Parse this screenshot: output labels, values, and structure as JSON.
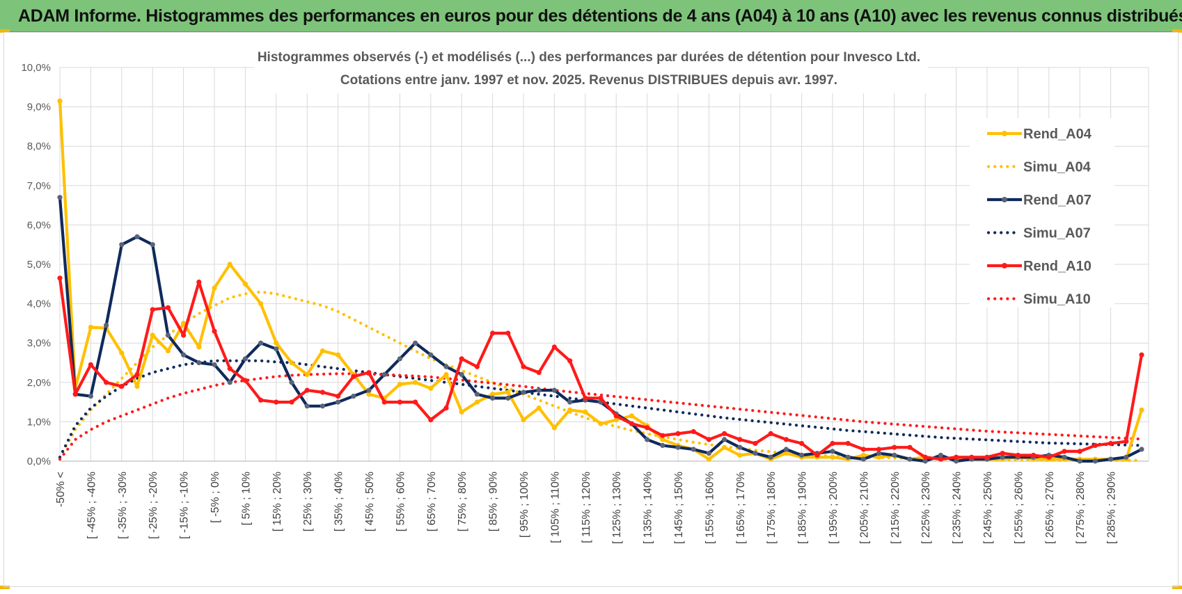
{
  "banner": {
    "title": "ADAM Informe. Histogrammes des performances en euros pour des détentions de 4 ans (A04) à 10 ans (A10) avec les revenus connus distribués"
  },
  "colors": {
    "banner_bg": "#7dc47a",
    "A04": "#ffc000",
    "A07": "#0f2a5c",
    "A10": "#ff1a1a",
    "marker_A07": "#5a6478",
    "grid": "#d9d9d9"
  },
  "chart_data": {
    "type": "line",
    "title": "Histogrammes observés (-) et modélisés (...) des performances par durées de détention pour Invesco Ltd.",
    "subtitle": "Cotations entre janv. 1997 et nov. 2025. Revenus DISTRIBUES depuis avr. 1997.",
    "ylim": [
      0,
      10
    ],
    "y_ticks": [
      "0,0%",
      "1,0%",
      "2,0%",
      "3,0%",
      "4,0%",
      "5,0%",
      "6,0%",
      "7,0%",
      "8,0%",
      "9,0%",
      "10,0%"
    ],
    "grid": true,
    "legend_position": "right",
    "x_tick_labels": [
      "-50% <",
      "[ -45% ; -40%",
      "[ -35% ; -30%",
      "[ -25% ; -20%",
      "[ -15% ; -10%",
      "[ -5% ; 0%",
      "[ 5% ; 10%",
      "[ 15% ; 20%",
      "[ 25% ; 30%",
      "[ 35% ; 40%",
      "[ 45% ; 50%",
      "[ 55% ; 60%",
      "[ 65% ; 70%",
      "[ 75% ; 80%",
      "[ 85% ; 90%",
      "[ 95% ; 100%",
      "[ 105% ; 110%",
      "[ 115% ; 120%",
      "[ 125% ; 130%",
      "[ 135% ; 140%",
      "[ 145% ; 150%",
      "[ 155% ; 160%",
      "[ 165% ; 170%",
      "[ 175% ; 180%",
      "[ 185% ; 190%",
      "[ 195% ; 200%",
      "[ 205% ; 210%",
      "[ 215% ; 220%",
      "[ 225% ; 230%",
      "[ 235% ; 240%",
      "[ 245% ; 250%",
      "[ 255% ; 260%",
      "[ 265% ; 270%",
      "[ 275% ; 280%",
      "[ 285% ; 290%"
    ],
    "series": [
      {
        "name": "Rend_A04",
        "style": "solid",
        "color": "#ffc000",
        "values": [
          9.15,
          1.85,
          3.4,
          3.38,
          2.75,
          1.9,
          3.2,
          2.8,
          3.5,
          2.9,
          4.4,
          5.0,
          4.5,
          4.0,
          3.0,
          2.5,
          2.2,
          2.8,
          2.7,
          2.2,
          1.7,
          1.6,
          1.95,
          2.0,
          1.85,
          2.2,
          1.25,
          1.5,
          1.7,
          1.75,
          1.05,
          1.35,
          0.85,
          1.3,
          1.25,
          0.95,
          1.05,
          1.15,
          0.9,
          0.55,
          0.4,
          0.3,
          0.05,
          0.35,
          0.15,
          0.2,
          0.05,
          0.2,
          0.1,
          0.1,
          0.1,
          0.05,
          0.15,
          0.1,
          0.15,
          0.05,
          0.1,
          0.05,
          0.1,
          0.05,
          0.05,
          0.05,
          0.1,
          0.05,
          0.05,
          0.05,
          0.05,
          0.05,
          0.05,
          0.05,
          1.3
        ]
      },
      {
        "name": "Simu_A04",
        "style": "dotted",
        "color": "#ffc000",
        "values": [
          0.1,
          0.8,
          1.3,
          1.7,
          2.1,
          2.5,
          2.9,
          3.2,
          3.5,
          3.75,
          3.95,
          4.15,
          4.25,
          4.3,
          4.25,
          4.15,
          4.05,
          3.95,
          3.8,
          3.6,
          3.4,
          3.2,
          3.0,
          2.8,
          2.6,
          2.45,
          2.3,
          2.15,
          2.0,
          1.85,
          1.7,
          1.55,
          1.4,
          1.25,
          1.1,
          0.98,
          0.88,
          0.78,
          0.7,
          0.62,
          0.55,
          0.48,
          0.42,
          0.37,
          0.32,
          0.28,
          0.24,
          0.21,
          0.18,
          0.15,
          0.13,
          0.11,
          0.1,
          0.09,
          0.08,
          0.07,
          0.06,
          0.05,
          0.05,
          0.04,
          0.04,
          0.03,
          0.03,
          0.03,
          0.02,
          0.02,
          0.02,
          0.02,
          0.02,
          0.02,
          0.02
        ]
      },
      {
        "name": "Rend_A07",
        "style": "solid",
        "color": "#0f2a5c",
        "values": [
          6.7,
          1.7,
          1.65,
          3.45,
          5.5,
          5.7,
          5.5,
          3.2,
          2.7,
          2.5,
          2.45,
          2.0,
          2.6,
          3.0,
          2.85,
          2.0,
          1.4,
          1.4,
          1.5,
          1.65,
          1.8,
          2.2,
          2.6,
          3.0,
          2.7,
          2.4,
          2.2,
          1.7,
          1.6,
          1.6,
          1.75,
          1.8,
          1.8,
          1.5,
          1.55,
          1.5,
          1.2,
          0.95,
          0.55,
          0.4,
          0.35,
          0.3,
          0.2,
          0.55,
          0.35,
          0.2,
          0.1,
          0.3,
          0.15,
          0.2,
          0.25,
          0.1,
          0.05,
          0.2,
          0.15,
          0.05,
          0.0,
          0.15,
          0.0,
          0.05,
          0.05,
          0.1,
          0.1,
          0.1,
          0.15,
          0.1,
          0.0,
          0.0,
          0.05,
          0.1,
          0.3
        ]
      },
      {
        "name": "Simu_A07",
        "style": "dotted",
        "color": "#0f2a5c",
        "values": [
          0.1,
          0.9,
          1.35,
          1.65,
          1.9,
          2.1,
          2.25,
          2.35,
          2.45,
          2.5,
          2.55,
          2.55,
          2.55,
          2.55,
          2.52,
          2.5,
          2.45,
          2.4,
          2.35,
          2.3,
          2.25,
          2.2,
          2.15,
          2.1,
          2.05,
          2.0,
          1.95,
          1.9,
          1.85,
          1.8,
          1.75,
          1.7,
          1.65,
          1.6,
          1.55,
          1.5,
          1.45,
          1.4,
          1.35,
          1.3,
          1.25,
          1.2,
          1.15,
          1.1,
          1.06,
          1.02,
          0.98,
          0.94,
          0.9,
          0.86,
          0.82,
          0.78,
          0.75,
          0.72,
          0.69,
          0.66,
          0.63,
          0.6,
          0.58,
          0.56,
          0.54,
          0.52,
          0.5,
          0.48,
          0.46,
          0.45,
          0.44,
          0.43,
          0.42,
          0.41,
          0.4
        ]
      },
      {
        "name": "Rend_A10",
        "style": "solid",
        "color": "#ff1a1a",
        "values": [
          4.65,
          1.7,
          2.45,
          2.0,
          1.9,
          2.2,
          3.85,
          3.9,
          3.2,
          4.55,
          3.3,
          2.35,
          2.05,
          1.55,
          1.5,
          1.5,
          1.8,
          1.75,
          1.65,
          2.15,
          2.25,
          1.5,
          1.5,
          1.5,
          1.05,
          1.35,
          2.6,
          2.4,
          3.25,
          3.25,
          2.4,
          2.25,
          2.9,
          2.55,
          1.6,
          1.6,
          1.15,
          0.95,
          0.85,
          0.65,
          0.7,
          0.75,
          0.55,
          0.7,
          0.55,
          0.45,
          0.7,
          0.55,
          0.45,
          0.15,
          0.45,
          0.45,
          0.3,
          0.3,
          0.35,
          0.35,
          0.1,
          0.05,
          0.1,
          0.1,
          0.1,
          0.2,
          0.15,
          0.15,
          0.1,
          0.25,
          0.25,
          0.4,
          0.45,
          0.5,
          2.7
        ]
      },
      {
        "name": "Simu_A10",
        "style": "dotted",
        "color": "#ff1a1a",
        "values": [
          0.05,
          0.55,
          0.8,
          1.0,
          1.15,
          1.3,
          1.45,
          1.6,
          1.72,
          1.82,
          1.92,
          2.0,
          2.05,
          2.1,
          2.15,
          2.18,
          2.2,
          2.21,
          2.22,
          2.22,
          2.21,
          2.2,
          2.18,
          2.16,
          2.14,
          2.1,
          2.06,
          2.02,
          1.98,
          1.94,
          1.9,
          1.85,
          1.8,
          1.76,
          1.72,
          1.68,
          1.64,
          1.6,
          1.56,
          1.52,
          1.48,
          1.44,
          1.4,
          1.36,
          1.32,
          1.28,
          1.24,
          1.2,
          1.16,
          1.12,
          1.08,
          1.04,
          1.0,
          0.97,
          0.94,
          0.91,
          0.88,
          0.85,
          0.82,
          0.79,
          0.76,
          0.74,
          0.72,
          0.7,
          0.68,
          0.66,
          0.64,
          0.62,
          0.6,
          0.58,
          0.56
        ]
      }
    ]
  }
}
